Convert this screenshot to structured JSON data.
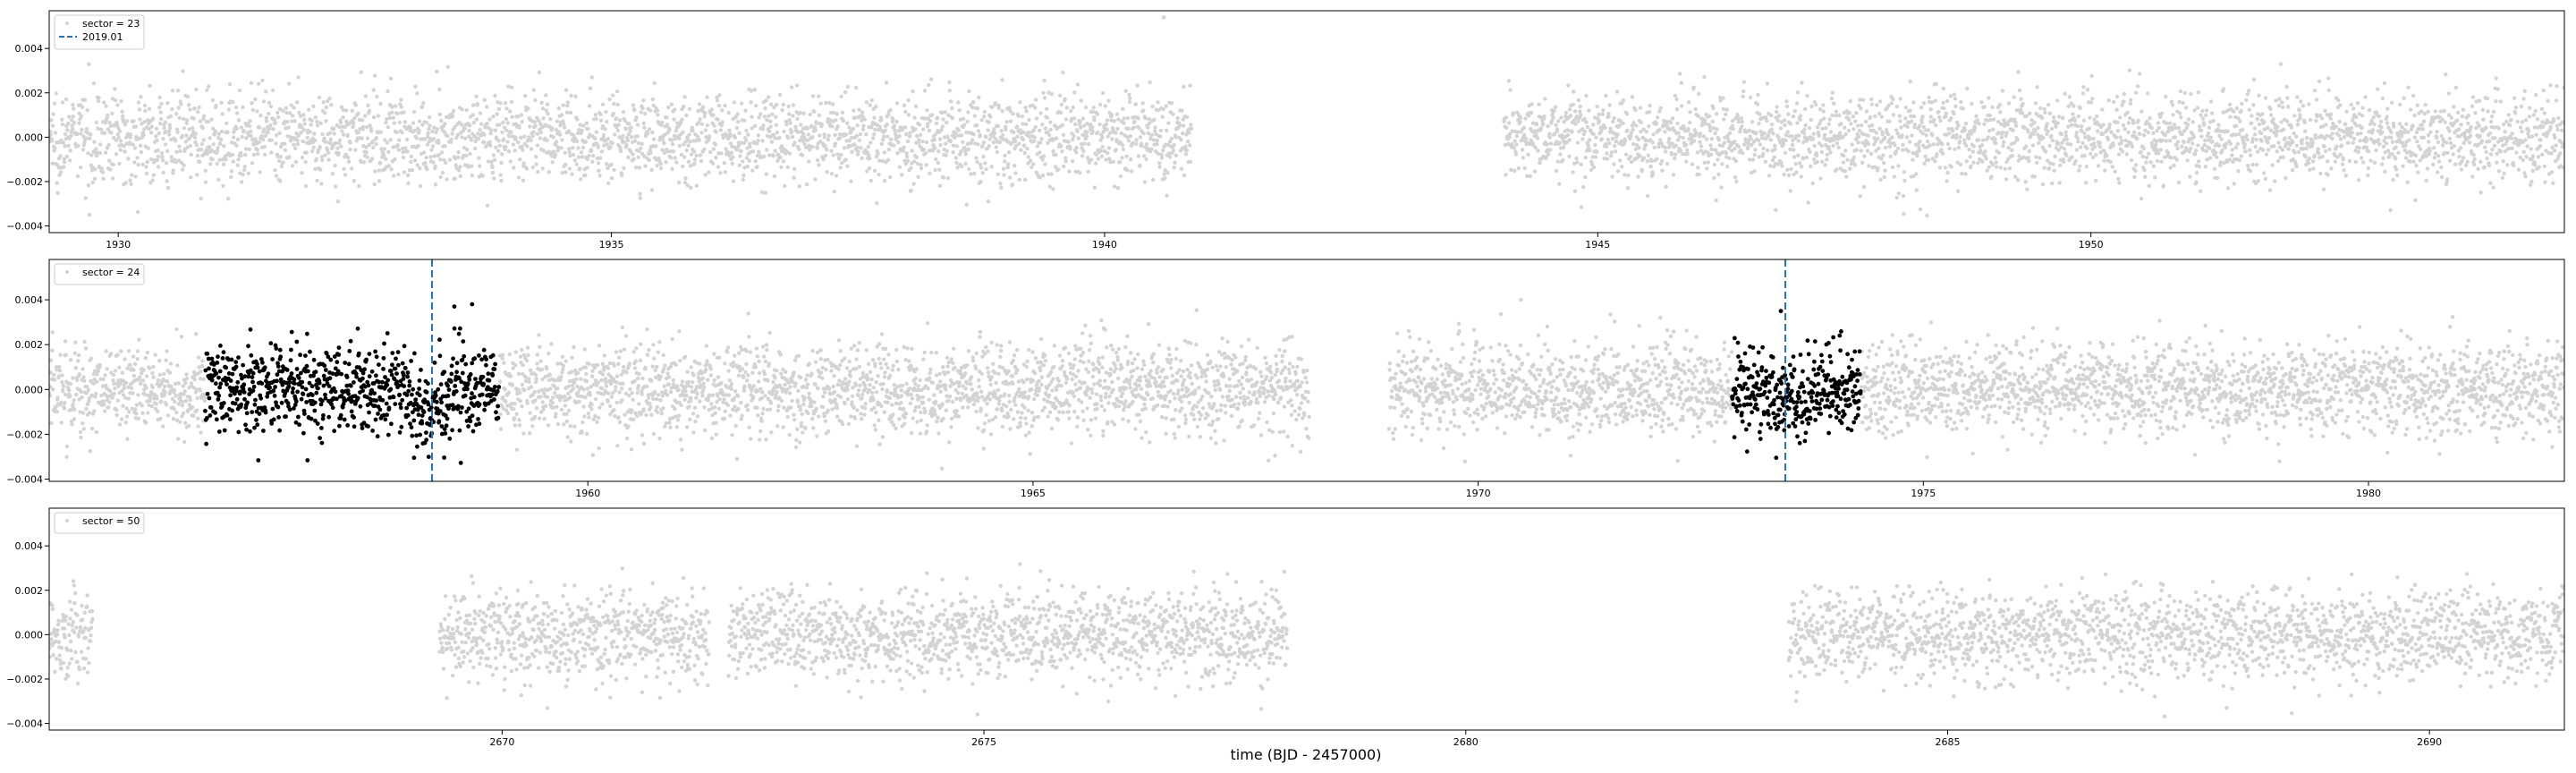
{
  "figure": {
    "xlabel": "time (BJD - 2457000)",
    "point_color": "#d3d3d3",
    "highlight_color": "#000000",
    "line_color": "#1f77b4"
  },
  "chart_data": [
    {
      "type": "scatter",
      "xlim": [
        1929.3,
        1954.8
      ],
      "ylim": [
        -0.0043,
        0.0057
      ],
      "xticks": [
        1930,
        1935,
        1940,
        1945,
        1950
      ],
      "yticks": [
        -0.004,
        -0.002,
        0.0,
        0.002,
        0.004
      ],
      "xtick_labels": [
        "1930",
        "1935",
        "1940",
        "1945",
        "1950"
      ],
      "ytick_labels": [
        "−0.004",
        "−0.002",
        "0.000",
        "0.002",
        "0.004"
      ],
      "legend": {
        "placement": "top-left",
        "entries": [
          {
            "label": "sector = 23",
            "marker": "dot",
            "color": "#d3d3d3"
          },
          {
            "label": "2019.01",
            "marker": "dashed-line",
            "color": "#1f77b4"
          }
        ]
      },
      "segments": [
        [
          1929.3,
          1940.88
        ],
        [
          1944.05,
          1954.8
        ]
      ],
      "scatter_sigma": 0.001,
      "outliers": [
        {
          "x": 1940.6,
          "y": 0.0054
        }
      ],
      "highlight_windows": [],
      "vlines": []
    },
    {
      "type": "scatter",
      "xlim": [
        1953.95,
        1982.2
      ],
      "ylim": [
        -0.0041,
        0.0058
      ],
      "xticks": [
        1960,
        1965,
        1970,
        1975,
        1980
      ],
      "yticks": [
        -0.004,
        -0.002,
        0.0,
        0.002,
        0.004
      ],
      "xtick_labels": [
        "1960",
        "1965",
        "1970",
        "1975",
        "1980"
      ],
      "ytick_labels": [
        "−0.004",
        "−0.002",
        "0.000",
        "0.002",
        "0.004"
      ],
      "legend": {
        "placement": "top-left",
        "entries": [
          {
            "label": "sector = 24",
            "marker": "dot",
            "color": "#d3d3d3"
          }
        ]
      },
      "segments": [
        [
          1953.95,
          1968.1
        ],
        [
          1969.0,
          1982.2
        ]
      ],
      "scatter_sigma": 0.001,
      "outliers": [
        {
          "x": 1958.5,
          "y": 0.0037
        },
        {
          "x": 1958.7,
          "y": 0.0038
        },
        {
          "x": 1973.4,
          "y": 0.0035
        }
      ],
      "highlight_windows": [
        [
          1955.7,
          1959.0
        ],
        [
          1972.85,
          1974.3
        ]
      ],
      "vlines": [
        1958.25,
        1973.45
      ]
    },
    {
      "type": "scatter",
      "xlim": [
        2665.3,
        2691.4
      ],
      "ylim": [
        -0.0043,
        0.0057
      ],
      "xticks": [
        2670,
        2675,
        2680,
        2685,
        2690
      ],
      "yticks": [
        -0.004,
        -0.002,
        0.0,
        0.002,
        0.004
      ],
      "xtick_labels": [
        "2670",
        "2675",
        "2680",
        "2685",
        "2690"
      ],
      "ytick_labels": [
        "−0.004",
        "−0.002",
        "0.000",
        "0.002",
        "0.004"
      ],
      "legend": {
        "placement": "top-left",
        "entries": [
          {
            "label": "sector = 50",
            "marker": "dot",
            "color": "#d3d3d3"
          }
        ]
      },
      "segments": [
        [
          2665.3,
          2665.75
        ],
        [
          2669.35,
          2672.15
        ],
        [
          2672.35,
          2678.15
        ],
        [
          2683.35,
          2691.4
        ]
      ],
      "scatter_sigma": 0.001,
      "outliers": [],
      "highlight_windows": [],
      "vlines": []
    }
  ]
}
